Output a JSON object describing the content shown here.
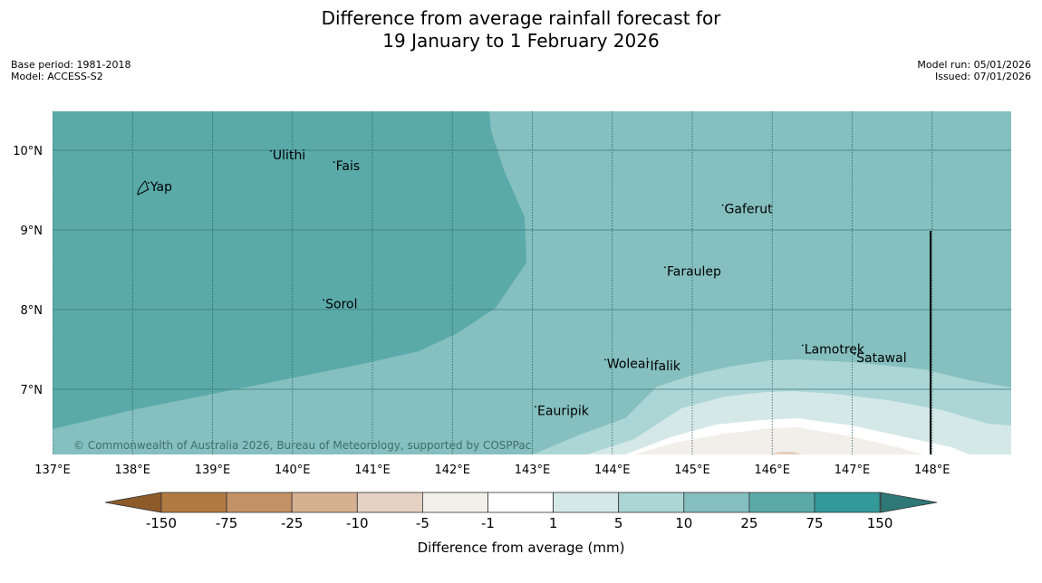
{
  "title": {
    "line1": "Difference from average rainfall forecast for",
    "line2": "19 January to 1 February 2026"
  },
  "meta_left": {
    "base_period": "Base period: 1981-2018",
    "model": "Model: ACCESS-S2"
  },
  "meta_right": {
    "model_run": "Model run: 05/01/2026",
    "issued": "Issued: 07/01/2026"
  },
  "map": {
    "lon_range": [
      137,
      149
    ],
    "lat_range": [
      6.2,
      10.5
    ],
    "lon_ticks": [
      "137°E",
      "138°E",
      "139°E",
      "140°E",
      "141°E",
      "142°E",
      "143°E",
      "144°E",
      "145°E",
      "146°E",
      "147°E",
      "148°E"
    ],
    "lat_ticks": [
      "10°N",
      "9°N",
      "8°N",
      "7°N"
    ],
    "places": [
      {
        "name": "Yap",
        "lon": 138.2,
        "lat": 9.5
      },
      {
        "name": "Ulithi",
        "lon": 139.73,
        "lat": 9.9
      },
      {
        "name": "Fais",
        "lon": 140.52,
        "lat": 9.76
      },
      {
        "name": "Gaferut",
        "lon": 145.38,
        "lat": 9.22
      },
      {
        "name": "Faraulep",
        "lon": 144.66,
        "lat": 8.44
      },
      {
        "name": "Sorol",
        "lon": 140.39,
        "lat": 8.03
      },
      {
        "name": "Woleai",
        "lon": 143.91,
        "lat": 7.28
      },
      {
        "name": "Ifalik",
        "lon": 144.45,
        "lat": 7.25
      },
      {
        "name": "Lamotrek",
        "lon": 146.38,
        "lat": 7.46
      },
      {
        "name": "Satawal",
        "lon": 147.03,
        "lat": 7.35
      },
      {
        "name": "Eauripik",
        "lon": 143.04,
        "lat": 6.69
      }
    ],
    "copyright": "© Commonwealth of Australia 2026, Bureau of Meteorology, supported by COSPPac",
    "colors": {
      "gt25": "#5aaaaa",
      "10to25": "#85bfbf",
      "5to10": "#acd5d5",
      "1to5": "#d5e8e8",
      "neutral": "#ffffff",
      "m1to5": "#f2eeea",
      "m5to10": "#e5cfbd"
    }
  },
  "colorbar": {
    "title": "Difference from average (mm)",
    "ticks": [
      "-150",
      "-75",
      "-25",
      "-10",
      "-5",
      "-1",
      "1",
      "5",
      "10",
      "25",
      "75",
      "150"
    ],
    "low_extend_color": "#8d5a2a",
    "high_extend_color": "#2f7878",
    "colors": [
      "#b07a42",
      "#c29166",
      "#d5b191",
      "#e5d2c2",
      "#f3f0eb",
      "#ffffff",
      "#d5e8e8",
      "#acd5d5",
      "#85bfbf",
      "#5aaaaa",
      "#339999"
    ]
  }
}
